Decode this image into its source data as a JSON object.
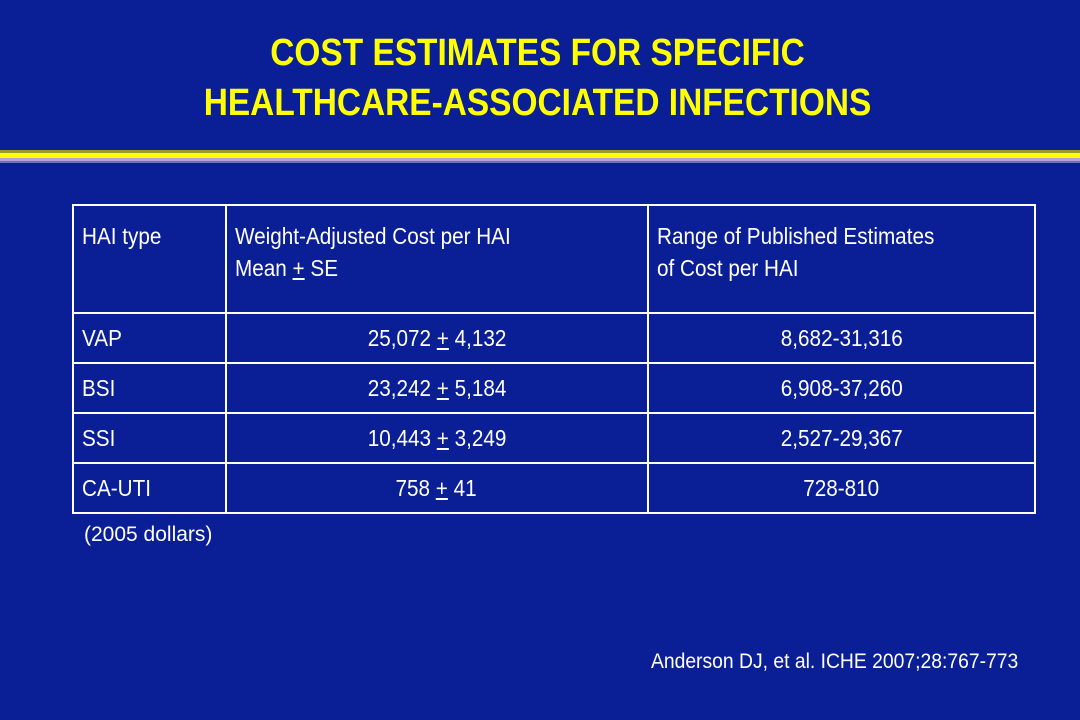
{
  "title": {
    "line1": "COST ESTIMATES FOR SPECIFIC",
    "line2": "HEALTHCARE-ASSOCIATED INFECTIONS"
  },
  "table": {
    "headers": {
      "col1": "HAI type",
      "col2_line1": "Weight-Adjusted Cost per HAI",
      "col2_line2_pre": "Mean ",
      "col2_line2_pm": "+",
      "col2_line2_post": " SE",
      "col3_line1": "Range of Published Estimates",
      "col3_line2": "of Cost per HAI"
    },
    "pm_symbol": "+",
    "rows": [
      {
        "type": "VAP",
        "mean": "25,072",
        "se": "4,132",
        "range": "8,682-31,316"
      },
      {
        "type": "BSI",
        "mean": "23,242",
        "se": "5,184",
        "range": "6,908-37,260"
      },
      {
        "type": "SSI",
        "mean": "10,443",
        "se": "3,249",
        "range": "2,527-29,367"
      },
      {
        "type": "CA-UTI",
        "mean": "758",
        "se": "41",
        "range": "728-810"
      }
    ]
  },
  "note": "(2005 dollars)",
  "citation": "Anderson DJ, et al.  ICHE 2007;28:767-773",
  "colors": {
    "background": "#0a1e96",
    "title": "#ffff00",
    "text": "#ffffff"
  }
}
